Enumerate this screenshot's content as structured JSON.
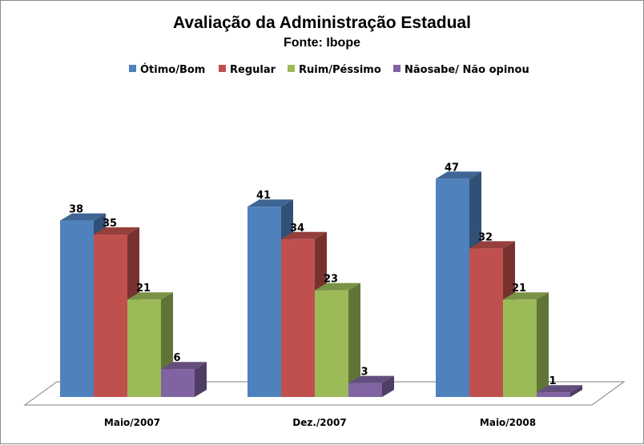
{
  "chart_data": {
    "type": "bar",
    "title": "Avaliação da Administração Estadual",
    "subtitle": "Fonte: Ibope",
    "categories": [
      "Maio/2007",
      "Dez./2007",
      "Maio/2008"
    ],
    "series": [
      {
        "name": "Ótimo/Bom",
        "values": [
          38,
          41,
          47
        ],
        "color": "#4f81bd"
      },
      {
        "name": "Regular",
        "values": [
          35,
          34,
          32
        ],
        "color": "#c0504d"
      },
      {
        "name": "Ruim/Péssimo",
        "values": [
          21,
          23,
          21
        ],
        "color": "#9bbb59"
      },
      {
        "name": "Nãosabe/ Não opinou",
        "values": [
          6,
          3,
          1
        ],
        "color": "#8064a2"
      }
    ],
    "ylim": [
      0,
      50
    ],
    "legend_position": "top",
    "grid": false,
    "three_d": true
  }
}
